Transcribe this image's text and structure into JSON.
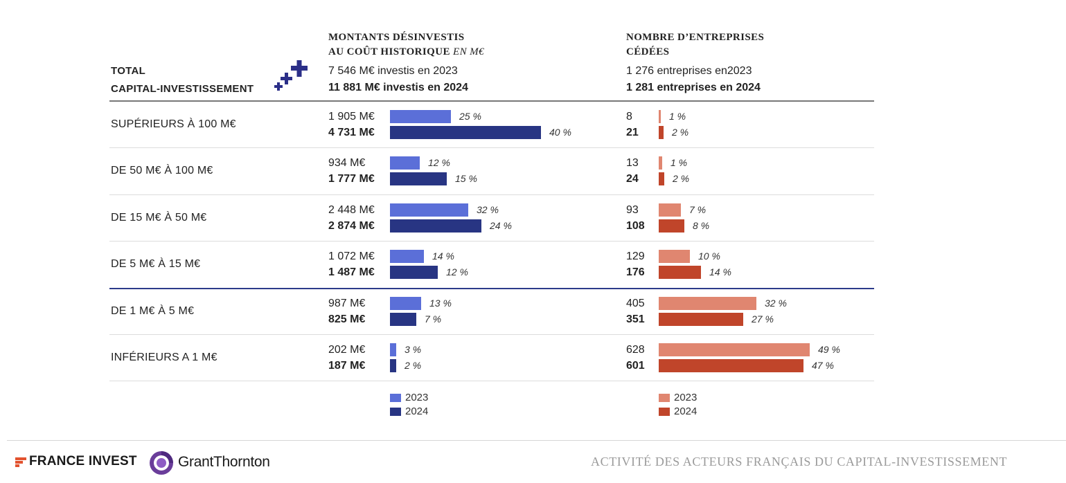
{
  "header": {
    "total_line1": "TOTAL",
    "total_line2": "CAPITAL-INVESTISSEMENT",
    "amount_title_line1": "MONTANTS DÉSINVESTIS",
    "amount_title_line2": "AU COÛT HISTORIQUE",
    "amount_title_unit": "EN M€",
    "amount_2023": "7 546 M€ investis en 2023",
    "amount_2024": "11 881 M€ investis en 2024",
    "count_title_line1": "NOMBRE D’ENTREPRISES",
    "count_title_line2": "CÉDÉES",
    "count_2023": "1 276 entreprises en2023",
    "count_2024": "1 281 entreprises en 2024"
  },
  "chart_data": {
    "type": "bar",
    "orientation": "horizontal",
    "categories": [
      "SUPÉRIEURS À 100 M€",
      "DE 50 M€ À 100 M€",
      "DE 15 M€ À 50 M€",
      "DE 5 M€ À 15 M€",
      "DE 1 M€ À 5 M€",
      "INFÉRIEURS A 1 M€"
    ],
    "panels": [
      {
        "name": "amounts",
        "unit": "M€",
        "series": [
          {
            "name": "2023",
            "color": "#5b6fd8",
            "values": [
              1905,
              934,
              2448,
              1072,
              987,
              202
            ],
            "labels": [
              "1 905 M€",
              "934 M€",
              "2 448 M€",
              "1 072 M€",
              "987 M€",
              "202 M€"
            ],
            "pct_labels": [
              "25 %",
              "12 %",
              "32 %",
              "14 %",
              "13 %",
              "3 %"
            ]
          },
          {
            "name": "2024",
            "color": "#283583",
            "values": [
              4731,
              1777,
              2874,
              1487,
              825,
              187
            ],
            "labels": [
              "4 731 M€",
              "1 777 M€",
              "2 874 M€",
              "1 487 M€",
              "825 M€",
              "187 M€"
            ],
            "pct_labels": [
              "40 %",
              "15 %",
              "24 %",
              "12 %",
              "7 %",
              "2 %"
            ]
          }
        ]
      },
      {
        "name": "companies",
        "unit": "",
        "series": [
          {
            "name": "2023",
            "color": "#e08670",
            "values": [
              8,
              13,
              93,
              129,
              405,
              628
            ],
            "labels": [
              "8",
              "13",
              "93",
              "129",
              "405",
              "628"
            ],
            "pct_labels": [
              "1 %",
              "1 %",
              "7 %",
              "10 %",
              "32 %",
              "49 %"
            ]
          },
          {
            "name": "2024",
            "color": "#c0452a",
            "values": [
              21,
              24,
              108,
              176,
              351,
              601
            ],
            "labels": [
              "21",
              "24",
              "108",
              "176",
              "351",
              "601"
            ],
            "pct_labels": [
              "2 %",
              "2 %",
              "8 %",
              "14 %",
              "27 %",
              "47 %"
            ]
          }
        ]
      }
    ],
    "legend": [
      "2023",
      "2024"
    ]
  },
  "footer": {
    "france_invest": "FRANCE INVEST",
    "grant_thornton": "GrantThornton",
    "title": "ACTIVITÉ DES ACTEURS FRANÇAIS DU CAPITAL-INVESTISSEMENT"
  }
}
